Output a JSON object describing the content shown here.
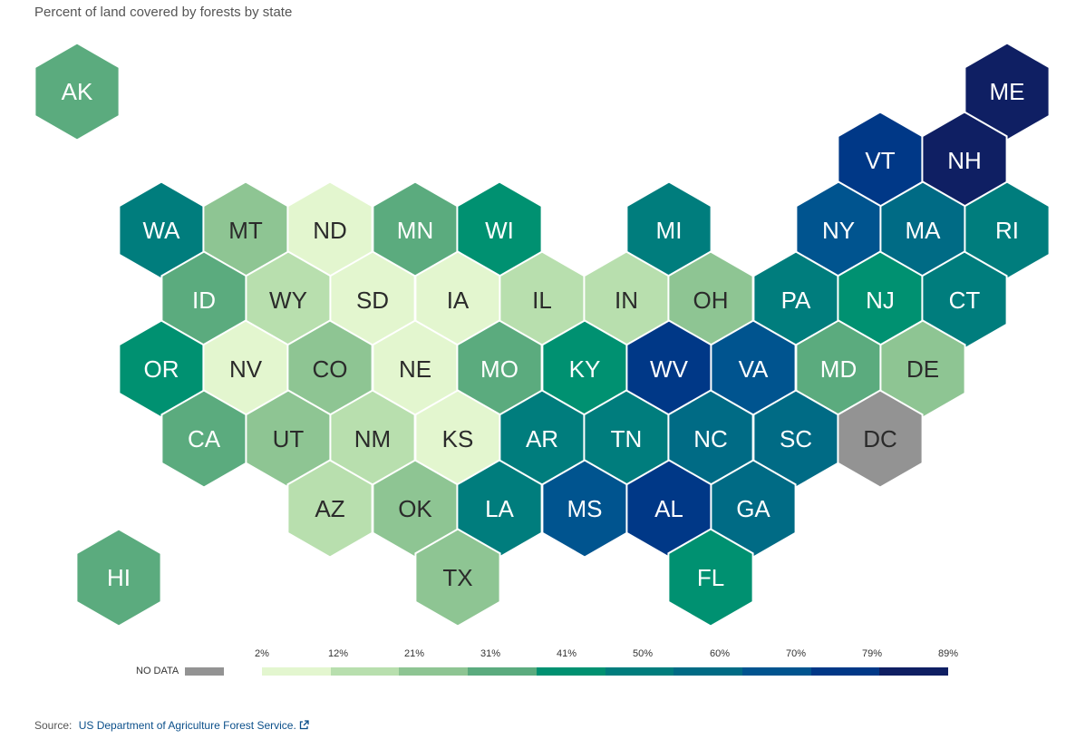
{
  "title": "Percent of land covered by forests by state",
  "legend": {
    "no_data_label": "NO DATA",
    "no_data_color": "#939393",
    "ticks": [
      "2%",
      "12%",
      "21%",
      "31%",
      "41%",
      "50%",
      "60%",
      "70%",
      "79%",
      "89%"
    ],
    "colors": [
      "#e3f6cf",
      "#b8dfae",
      "#8ec593",
      "#5bab7e",
      "#009171",
      "#007d7d",
      "#006b85",
      "#00548f",
      "#003887",
      "#0f1f63"
    ]
  },
  "source": {
    "label": "Source:",
    "link_text": "US Department of Agriculture Forest Service."
  },
  "states": [
    {
      "abbr": "AK",
      "color": "#5bab7e"
    },
    {
      "abbr": "ME",
      "color": "#0f1f63"
    },
    {
      "abbr": "VT",
      "color": "#003887"
    },
    {
      "abbr": "NH",
      "color": "#0f1f63"
    },
    {
      "abbr": "WA",
      "color": "#007d7d"
    },
    {
      "abbr": "MT",
      "color": "#8ec593"
    },
    {
      "abbr": "ND",
      "color": "#e3f6cf"
    },
    {
      "abbr": "MN",
      "color": "#5bab7e"
    },
    {
      "abbr": "WI",
      "color": "#009171"
    },
    {
      "abbr": "MI",
      "color": "#007d7d"
    },
    {
      "abbr": "NY",
      "color": "#00548f"
    },
    {
      "abbr": "MA",
      "color": "#006b85"
    },
    {
      "abbr": "RI",
      "color": "#007d7d"
    },
    {
      "abbr": "ID",
      "color": "#5bab7e"
    },
    {
      "abbr": "WY",
      "color": "#b8dfae"
    },
    {
      "abbr": "SD",
      "color": "#e3f6cf"
    },
    {
      "abbr": "IA",
      "color": "#e3f6cf"
    },
    {
      "abbr": "IL",
      "color": "#b8dfae"
    },
    {
      "abbr": "IN",
      "color": "#b8dfae"
    },
    {
      "abbr": "OH",
      "color": "#8ec593"
    },
    {
      "abbr": "PA",
      "color": "#007d7d"
    },
    {
      "abbr": "NJ",
      "color": "#009171"
    },
    {
      "abbr": "CT",
      "color": "#007d7d"
    },
    {
      "abbr": "OR",
      "color": "#009171"
    },
    {
      "abbr": "NV",
      "color": "#e3f6cf"
    },
    {
      "abbr": "CO",
      "color": "#8ec593"
    },
    {
      "abbr": "NE",
      "color": "#e3f6cf"
    },
    {
      "abbr": "MO",
      "color": "#5bab7e"
    },
    {
      "abbr": "KY",
      "color": "#009171"
    },
    {
      "abbr": "WV",
      "color": "#003887"
    },
    {
      "abbr": "VA",
      "color": "#00548f"
    },
    {
      "abbr": "MD",
      "color": "#5bab7e"
    },
    {
      "abbr": "DE",
      "color": "#8ec593"
    },
    {
      "abbr": "CA",
      "color": "#5bab7e"
    },
    {
      "abbr": "UT",
      "color": "#8ec593"
    },
    {
      "abbr": "NM",
      "color": "#b8dfae"
    },
    {
      "abbr": "KS",
      "color": "#e3f6cf"
    },
    {
      "abbr": "AR",
      "color": "#007d7d"
    },
    {
      "abbr": "TN",
      "color": "#007d7d"
    },
    {
      "abbr": "NC",
      "color": "#006b85"
    },
    {
      "abbr": "SC",
      "color": "#006b85"
    },
    {
      "abbr": "DC",
      "color": "#939393"
    },
    {
      "abbr": "AZ",
      "color": "#b8dfae"
    },
    {
      "abbr": "OK",
      "color": "#8ec593"
    },
    {
      "abbr": "LA",
      "color": "#007d7d"
    },
    {
      "abbr": "MS",
      "color": "#00548f"
    },
    {
      "abbr": "AL",
      "color": "#003887"
    },
    {
      "abbr": "GA",
      "color": "#006b85"
    },
    {
      "abbr": "HI",
      "color": "#5bab7e"
    },
    {
      "abbr": "TX",
      "color": "#8ec593"
    },
    {
      "abbr": "FL",
      "color": "#009171"
    }
  ]
}
